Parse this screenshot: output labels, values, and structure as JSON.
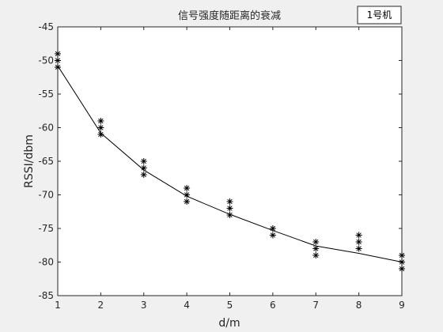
{
  "chart_data": {
    "type": "line",
    "title": "信号强度随距离的衰减",
    "xlabel": "d/m",
    "ylabel": "RSSI/dbm",
    "xlim": [
      1,
      9
    ],
    "ylim": [
      -85,
      -45
    ],
    "xticks": [
      1,
      2,
      3,
      4,
      5,
      6,
      7,
      8,
      9
    ],
    "yticks": [
      -45,
      -50,
      -55,
      -60,
      -65,
      -70,
      -75,
      -80,
      -85
    ],
    "grid": false,
    "legend_position": "top-right",
    "series": [
      {
        "name": "1号机",
        "kind": "line",
        "color": "#000000",
        "x": [
          1,
          2,
          3,
          4,
          5,
          6,
          7,
          8,
          9
        ],
        "y": [
          -50.8,
          -60.8,
          -66.3,
          -70.2,
          -72.9,
          -75.3,
          -77.6,
          -78.7,
          -80.0
        ]
      },
      {
        "name": "",
        "kind": "markers",
        "marker": "asterisk",
        "color": "#000000",
        "x": [
          1,
          1,
          1,
          2,
          2,
          2,
          3,
          3,
          3,
          4,
          4,
          4,
          5,
          5,
          5,
          6,
          6,
          7,
          7,
          7,
          8,
          8,
          8,
          9,
          9,
          9
        ],
        "y": [
          -49,
          -50,
          -51,
          -59,
          -60,
          -61,
          -65,
          -66,
          -67,
          -69,
          -70,
          -71,
          -71,
          -72,
          -73,
          -75,
          -76,
          -77,
          -78,
          -79,
          -76,
          -77,
          -78,
          -79,
          -80,
          -81
        ]
      }
    ]
  }
}
